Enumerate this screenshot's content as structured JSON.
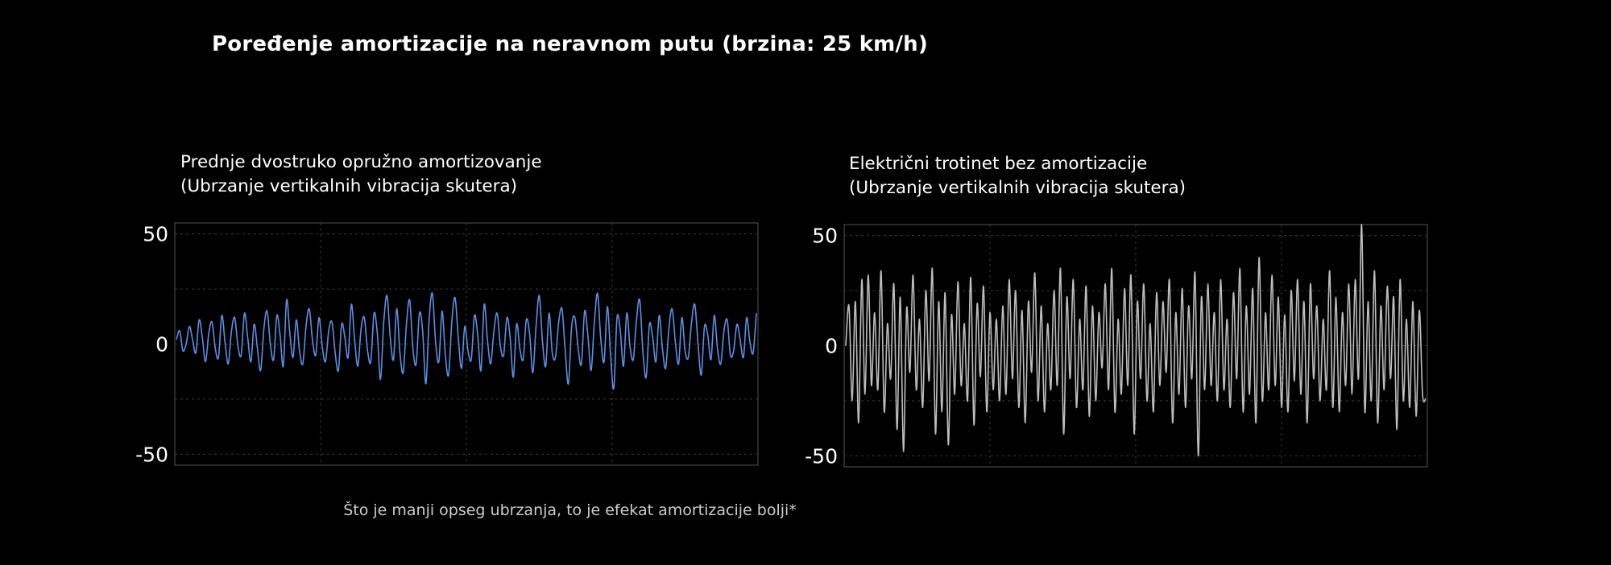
{
  "title": "Poređenje amortizacije na neravnom putu (brzina: 25 km/h)",
  "footnote": "Što je manji opseg ubrzanja, to je efekat amortizacije bolji*",
  "colors": {
    "background": "#000000",
    "frame": "#555555",
    "grid": "#3a3a3a",
    "series_left": "#5b8fe6",
    "series_right": "#bdbdbd"
  },
  "chart_data": [
    {
      "type": "line",
      "title": [
        "Prednje dvostruko opružno amortizovanje",
        "(Ubrzanje vertikalnih vibracija skutera)"
      ],
      "xlabel": "",
      "ylabel": "",
      "ylim": [
        -55,
        55
      ],
      "yticks": [
        "50",
        "0",
        "-50"
      ],
      "grid": true,
      "series": [
        {
          "color": "#5b8fe6",
          "y": [
            2,
            6,
            -3,
            0,
            8,
            2,
            -4,
            11,
            3,
            -8,
            5,
            10,
            -2,
            -6,
            13,
            1,
            -9,
            6,
            12,
            -1,
            -5,
            14,
            3,
            -8,
            9,
            -2,
            -12,
            7,
            15,
            0,
            -7,
            13,
            4,
            -10,
            20,
            5,
            -6,
            11,
            -3,
            -9,
            8,
            16,
            2,
            -5,
            12,
            -1,
            -8,
            6,
            10,
            -4,
            -12,
            9,
            3,
            -6,
            18,
            2,
            -10,
            7,
            12,
            -3,
            -8,
            14,
            5,
            -16,
            10,
            22,
            3,
            -7,
            16,
            -4,
            -13,
            9,
            20,
            -2,
            -9,
            14,
            6,
            -18,
            11,
            23,
            1,
            -8,
            15,
            -5,
            -14,
            10,
            21,
            3,
            -11,
            8,
            -3,
            -7,
            13,
            4,
            -12,
            18,
            2,
            -9,
            6,
            14,
            -1,
            -5,
            12,
            3,
            -15,
            9,
            -2,
            -7,
            11,
            5,
            -13,
            8,
            22,
            1,
            -10,
            14,
            -4,
            -6,
            10,
            16,
            -3,
            -18,
            8,
            12,
            -2,
            -9,
            15,
            4,
            -12,
            10,
            23,
            2,
            -8,
            17,
            -5,
            -20,
            12,
            6,
            -10,
            14,
            -1,
            -7,
            11,
            20,
            -4,
            -15,
            9,
            3,
            -8,
            13,
            -2,
            -11,
            7,
            16,
            1,
            -9,
            12,
            -3,
            -6,
            10,
            18,
            0,
            -14,
            8,
            4,
            -7,
            13,
            -2,
            -9,
            6,
            11,
            -5,
            -3,
            9,
            2,
            -6,
            12,
            1,
            -4,
            14
          ]
        }
      ]
    },
    {
      "type": "line",
      "title": [
        "Električni trotinet bez amortizacije",
        "(Ubrzanje vertikalnih vibracija skutera)"
      ],
      "xlabel": "",
      "ylabel": "",
      "ylim": [
        -55,
        55
      ],
      "yticks": [
        "50",
        "0",
        "-50"
      ],
      "grid": true,
      "series": [
        {
          "color": "#bdbdbd",
          "y": [
            0,
            18,
            -25,
            20,
            -35,
            30,
            -22,
            32,
            -18,
            15,
            -20,
            34,
            -30,
            10,
            -15,
            28,
            -38,
            22,
            -48,
            17,
            -12,
            32,
            -20,
            12,
            -28,
            25,
            -16,
            35,
            -40,
            20,
            -30,
            24,
            -45,
            14,
            -22,
            29,
            -18,
            10,
            -25,
            31,
            -36,
            19,
            -14,
            27,
            -30,
            15,
            -20,
            12,
            -25,
            18,
            -22,
            30,
            -15,
            25,
            -28,
            16,
            -35,
            20,
            -12,
            33,
            -25,
            18,
            -30,
            10,
            -20,
            25,
            -18,
            35,
            -40,
            22,
            -15,
            30,
            -28,
            12,
            -20,
            27,
            -32,
            18,
            -25,
            15,
            -10,
            28,
            -20,
            35,
            -30,
            12,
            -22,
            26,
            -18,
            32,
            -40,
            20,
            -15,
            28,
            -25,
            10,
            -30,
            24,
            -18,
            20,
            -12,
            30,
            -35,
            15,
            -22,
            26,
            -28,
            18,
            -15,
            33,
            -50,
            22,
            -20,
            28,
            -18,
            15,
            -25,
            30,
            -20,
            12,
            -28,
            24,
            -15,
            35,
            -30,
            18,
            -22,
            26,
            -35,
            40,
            -25,
            15,
            -20,
            32,
            -18,
            22,
            -28,
            14,
            -30,
            25,
            -16,
            30,
            -22,
            20,
            -35,
            28,
            -15,
            18,
            -25,
            12,
            -20,
            34,
            -28,
            22,
            -30,
            15,
            -18,
            28,
            -22,
            30,
            -15,
            55,
            -30,
            20,
            -25,
            34,
            -35,
            18,
            -20,
            27,
            -15,
            22,
            -38,
            30,
            -25,
            12,
            -28,
            20,
            -32,
            16,
            -22,
            -24
          ]
        }
      ]
    }
  ]
}
